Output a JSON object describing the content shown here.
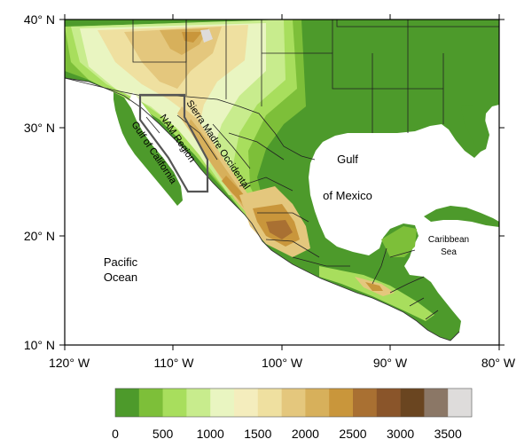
{
  "map": {
    "lat_ticks": [
      "40° N",
      "30° N",
      "20° N",
      "10° N"
    ],
    "lon_ticks": [
      "120° W",
      "110° W",
      "100° W",
      "90° W",
      "80° W"
    ],
    "labels": {
      "pacific_ocean": [
        "Pacific",
        "Ocean"
      ],
      "gulf_of_mexico": [
        "Gulf",
        "of Mexico"
      ],
      "caribbean_sea": [
        "Caribbean",
        "Sea"
      ],
      "gulf_of_california": "Gulf of California",
      "nam_region": "NAM Region",
      "sierra_madre": "Sierra Madre Occidental"
    },
    "extent": {
      "lon": [
        -120,
        -80
      ],
      "lat": [
        10,
        40
      ]
    },
    "elevation_colors": [
      "#4d9a2b",
      "#7dbf39",
      "#a8de5d",
      "#c8ec8d",
      "#e9f5c1",
      "#f4edbd",
      "#efe0a0",
      "#e4c77d",
      "#d7b05b",
      "#c9963b",
      "#a97032",
      "#8a552a",
      "#6a4520",
      "#8b7766",
      "#dedcdb"
    ],
    "colorbar_labels": [
      "0",
      "500",
      "1000",
      "1500",
      "2000",
      "2500",
      "3000",
      "3500"
    ],
    "colors": {
      "ocean": "#ffffff",
      "lowland": "#4d9a2b",
      "boundary": "#222222"
    }
  }
}
